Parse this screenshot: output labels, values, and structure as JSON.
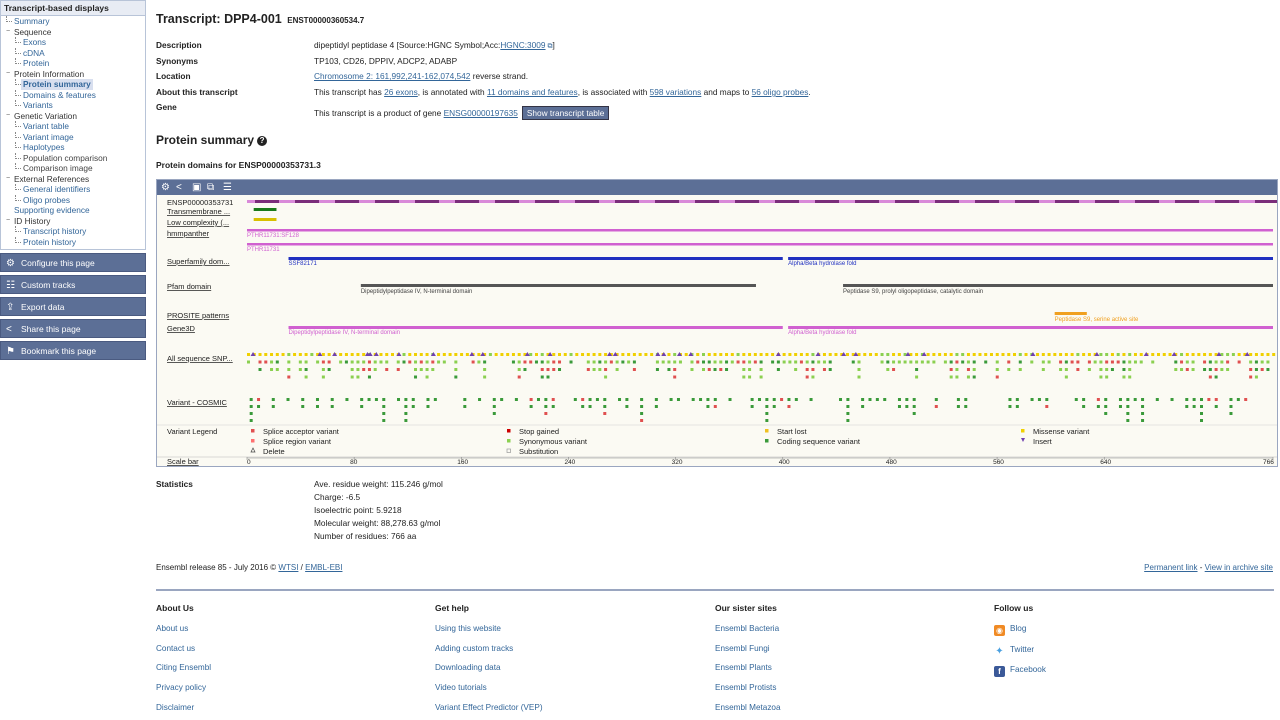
{
  "sidebar": {
    "title": "Transcript-based displays",
    "items": [
      {
        "label": "Summary",
        "level": 1
      },
      {
        "label": "Sequence",
        "level": 0,
        "tree": "−"
      },
      {
        "label": "Exons",
        "level": 1
      },
      {
        "label": "cDNA",
        "level": 1
      },
      {
        "label": "Protein",
        "level": 1
      },
      {
        "label": "Protein Information",
        "level": 0,
        "tree": "−"
      },
      {
        "label": "Protein summary",
        "level": 1,
        "active": true
      },
      {
        "label": "Domains & features",
        "level": 1
      },
      {
        "label": "Variants",
        "level": 1
      },
      {
        "label": "Genetic Variation",
        "level": 0,
        "tree": "−"
      },
      {
        "label": "Variant table",
        "level": 1
      },
      {
        "label": "Variant image",
        "level": 1
      },
      {
        "label": "Haplotypes",
        "level": 1
      },
      {
        "label": "Population comparison",
        "level": 1,
        "plain": true
      },
      {
        "label": "Comparison image",
        "level": 1,
        "plain": true
      },
      {
        "label": "External References",
        "level": 0,
        "tree": "−"
      },
      {
        "label": "General identifiers",
        "level": 1
      },
      {
        "label": "Oligo probes",
        "level": 1
      },
      {
        "label": "Supporting evidence",
        "level": 0,
        "link": true
      },
      {
        "label": "ID History",
        "level": 0,
        "tree": "−"
      },
      {
        "label": "Transcript history",
        "level": 1
      },
      {
        "label": "Protein history",
        "level": 1
      }
    ],
    "buttons": [
      {
        "label": "Configure this page",
        "icon": "gear-icon"
      },
      {
        "label": "Custom tracks",
        "icon": "tracks-icon"
      },
      {
        "label": "Export data",
        "icon": "export-icon"
      },
      {
        "label": "Share this page",
        "icon": "share-icon"
      },
      {
        "label": "Bookmark this page",
        "icon": "bookmark-icon"
      }
    ]
  },
  "transcript": {
    "title": "Transcript: DPP4-001",
    "id": "ENST00000360534.7"
  },
  "summary": {
    "description_label": "Description",
    "description_text": "dipeptidyl peptidase 4 [Source:HGNC Symbol;Acc:",
    "description_link": "HGNC:3009",
    "description_end": "]",
    "synonyms_label": "Synonyms",
    "synonyms": "TP103, CD26, DPPIV, ADCP2, ADABP",
    "location_label": "Location",
    "location_link": "Chromosome 2: 161,992,241-162,074,542",
    "location_text": "reverse strand.",
    "about_label": "About this transcript",
    "about_1": "This transcript has",
    "about_exons": "26 exons",
    "about_2": ", is annotated with",
    "about_domains": "11 domains and features",
    "about_3": ", is associated with",
    "about_variations": "598 variations",
    "about_4": "and maps to",
    "about_probes": "56 oligo probes",
    "about_5": ".",
    "gene_label": "Gene",
    "gene_text": "This transcript is a product of gene",
    "gene_link": "ENSG00000197635",
    "gene_button": "Show transcript table"
  },
  "protein_summary_heading": "Protein summary",
  "protein_domains_heading": "Protein domains for ENSP00000353731.3",
  "tracks": {
    "protein_id": "ENSP00000353731",
    "transmembrane": "Transmembrane ...",
    "low_complexity": "Low complexity (...",
    "hmmpanther": "hmmpanther",
    "hmm_1": "PTHR11731:SF128",
    "hmm_2": "PTHR11731",
    "superfamily": "Superfamily dom...",
    "sf_1": "SSF82171",
    "sf_2": "Alpha/Beta hydrolase fold",
    "pfam": "Pfam domain",
    "pfam_1": "Dipeptidylpeptidase IV, N-terminal domain",
    "pfam_2": "Peptidase S9, prolyl oligopeptidase, catalytic domain",
    "prosite": "PROSITE patterns",
    "prosite_1": "Peptidase S9, serine active site",
    "gene3d": "Gene3D",
    "g3d_1": "Dipeptidylpeptidase IV, N-terminal domain",
    "g3d_2": "Alpha/Beta hydrolase fold",
    "snp": "All sequence SNP...",
    "cosmic": "Variant - COSMIC",
    "legend": "Variant Legend",
    "scale": "Scale bar"
  },
  "legend_items": [
    {
      "label": "Splice acceptor variant",
      "color": "#e05050",
      "shape": "sq"
    },
    {
      "label": "Stop gained",
      "color": "#cc0000",
      "shape": "sq"
    },
    {
      "label": "Start lost",
      "color": "#f0c020",
      "shape": "sq"
    },
    {
      "label": "Missense variant",
      "color": "#f0d000",
      "shape": "sq"
    },
    {
      "label": "Splice region variant",
      "color": "#ff7070",
      "shape": "sq"
    },
    {
      "label": "Synonymous variant",
      "color": "#8bd050",
      "shape": "sq"
    },
    {
      "label": "Coding sequence variant",
      "color": "#3a9a3a",
      "shape": "sq"
    },
    {
      "label": "Insert",
      "color": "#7040b0",
      "shape": "tri-down"
    },
    {
      "label": "Delete",
      "color": "#7040b0",
      "shape": "tri-up"
    },
    {
      "label": "Substitution",
      "color": "#999999",
      "shape": "box"
    }
  ],
  "scale_ticks": [
    "0",
    "80",
    "160",
    "240",
    "320",
    "400",
    "480",
    "560",
    "640",
    "766"
  ],
  "colors": {
    "accent": "#5c6f96",
    "transmembrane": "#1a7a1a",
    "low_complexity": "#d8c000",
    "hmm": "#d060d0",
    "superfamily": "#2030c0",
    "pfam": "#555555",
    "prosite": "#f0a020",
    "gene3d": "#d060d0"
  },
  "statistics": {
    "label": "Statistics",
    "items": [
      "Ave. residue weight: 115.246 g/mol",
      "Charge: -6.5",
      "Isoelectric point: 5.9218",
      "Molecular weight: 88,278.63 g/mol",
      "Number of residues: 766 aa"
    ]
  },
  "release": {
    "text": "Ensembl release 85 - July 2016 ©",
    "wtsi": "WTSI",
    "sep": "/",
    "embl": "EMBL-EBI",
    "permanent": "Permanent link",
    "dash": "-",
    "archive": "View in archive site"
  },
  "footer": {
    "about": {
      "title": "About Us",
      "links": [
        "About us",
        "Contact us",
        "Citing Ensembl",
        "Privacy policy",
        "Disclaimer"
      ]
    },
    "help": {
      "title": "Get help",
      "links": [
        "Using this website",
        "Adding custom tracks",
        "Downloading data",
        "Video tutorials",
        "Variant Effect Predictor (VEP)"
      ]
    },
    "sister": {
      "title": "Our sister sites",
      "links": [
        "Ensembl Bacteria",
        "Ensembl Fungi",
        "Ensembl Plants",
        "Ensembl Protists",
        "Ensembl Metazoa"
      ]
    },
    "follow": {
      "title": "Follow us",
      "links": [
        "Blog",
        "Twitter",
        "Facebook"
      ]
    }
  }
}
